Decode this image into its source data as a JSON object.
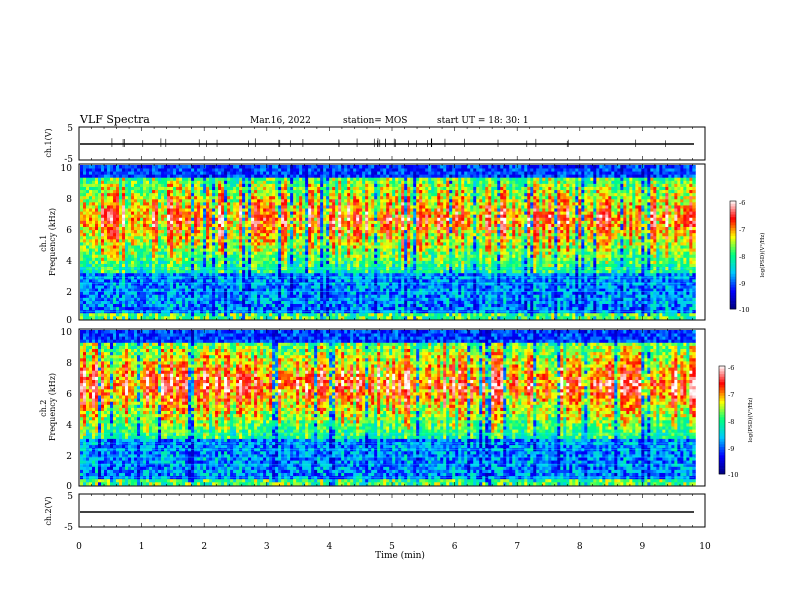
{
  "header": {
    "title": "VLF Spectra",
    "date": "Mar.16, 2022",
    "station": "station= MOS",
    "start": "start  UT =   18: 30: 1"
  },
  "chart_data": [
    {
      "type": "line",
      "panel": "ch1-waveform",
      "ylabel": "ch.1(V)",
      "ylim": [
        -5,
        5
      ],
      "y_ticks": [
        "5",
        "-5"
      ],
      "x_range_min": [
        0,
        9.83
      ],
      "series": [
        {
          "values_approx": -0.3
        }
      ]
    },
    {
      "type": "heatmap",
      "panel": "ch1-spectrogram",
      "ylabel": "ch.1\nFrequency (kHz)",
      "ylim": [
        0,
        10
      ],
      "y_ticks": [
        "0",
        "2",
        "4",
        "6",
        "8",
        "10"
      ],
      "x_range_min": [
        0,
        9.83
      ],
      "colorbar": {
        "label": "log(PSD)(V²/Hz)",
        "range": [
          -10,
          -6
        ],
        "ticks": [
          "-6",
          "-7",
          "-8",
          "-9",
          "-10"
        ]
      }
    },
    {
      "type": "heatmap",
      "panel": "ch2-spectrogram",
      "ylabel": "ch.2\nFrequency (kHz)",
      "ylim": [
        0,
        10
      ],
      "y_ticks": [
        "0",
        "2",
        "4",
        "6",
        "8",
        "10"
      ],
      "x_range_min": [
        0,
        9.83
      ],
      "colorbar": {
        "label": "log(PSD)(V²/Hz)",
        "range": [
          -10,
          -6
        ],
        "ticks": [
          "-6",
          "-7",
          "-8",
          "-9",
          "-10"
        ]
      }
    },
    {
      "type": "line",
      "panel": "ch2-waveform",
      "ylabel": "ch.2(V)",
      "ylim": [
        -5,
        5
      ],
      "y_ticks": [
        "5",
        "-5"
      ],
      "x_range_min": [
        0,
        9.83
      ],
      "series": [
        {
          "values_approx": 0.0
        }
      ]
    }
  ],
  "xaxis": {
    "label": "Time (min)",
    "range": [
      0,
      10
    ],
    "ticks": [
      "0",
      "1",
      "2",
      "3",
      "4",
      "5",
      "6",
      "7",
      "8",
      "9",
      "10"
    ]
  },
  "colors": {
    "colormap": [
      "#00007f",
      "#0000ff",
      "#00c8ff",
      "#00ff80",
      "#ffff00",
      "#ff0000",
      "#ffffff"
    ]
  }
}
